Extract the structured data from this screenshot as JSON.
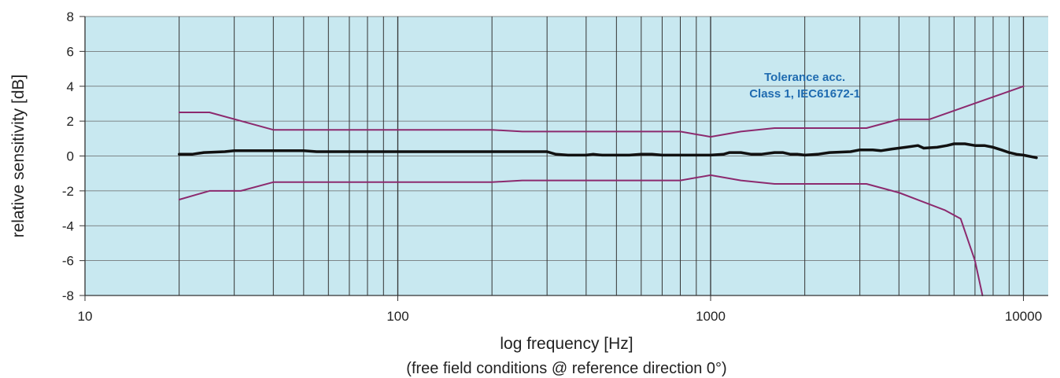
{
  "chart_data": {
    "type": "line",
    "xlabel": "log frequency [Hz]",
    "subtitle": "(free field conditions @ reference direction 0°)",
    "ylabel": "relative sensitivity [dB]",
    "xscale": "log",
    "xlim": [
      10,
      12000
    ],
    "ylim": [
      -8,
      8
    ],
    "x_ticks": [
      10,
      100,
      1000,
      10000
    ],
    "x_tick_labels": [
      "10",
      "100",
      "1000",
      "10000"
    ],
    "y_ticks": [
      -8,
      -6,
      -4,
      -2,
      0,
      2,
      4,
      6,
      8
    ],
    "y_tick_labels": [
      "-8",
      "-6",
      "-4",
      "-2",
      "0",
      "2",
      "4",
      "6",
      "8"
    ],
    "grid_vertical": [
      20,
      30,
      40,
      50,
      60,
      70,
      80,
      90,
      200,
      300,
      400,
      500,
      600,
      700,
      800,
      900,
      2000,
      3000,
      4000,
      5000,
      6000,
      7000,
      8000,
      9000
    ],
    "plot_background": "#c8e8f0",
    "annotation": {
      "lines": [
        "Tolerance acc.",
        "Class 1, IEC61672-1"
      ],
      "x": 2000,
      "y": 4.3
    },
    "series": [
      {
        "color": "#111111",
        "width": 3.5,
        "points": [
          [
            20,
            0.1
          ],
          [
            22,
            0.1
          ],
          [
            24,
            0.2
          ],
          [
            28,
            0.25
          ],
          [
            30,
            0.3
          ],
          [
            35,
            0.3
          ],
          [
            40,
            0.3
          ],
          [
            50,
            0.3
          ],
          [
            55,
            0.25
          ],
          [
            70,
            0.25
          ],
          [
            100,
            0.25
          ],
          [
            200,
            0.25
          ],
          [
            300,
            0.25
          ],
          [
            320,
            0.1
          ],
          [
            350,
            0.05
          ],
          [
            400,
            0.05
          ],
          [
            420,
            0.1
          ],
          [
            450,
            0.05
          ],
          [
            500,
            0.05
          ],
          [
            550,
            0.05
          ],
          [
            600,
            0.1
          ],
          [
            650,
            0.1
          ],
          [
            700,
            0.05
          ],
          [
            800,
            0.05
          ],
          [
            900,
            0.05
          ],
          [
            1000,
            0.05
          ],
          [
            1100,
            0.1
          ],
          [
            1150,
            0.2
          ],
          [
            1250,
            0.2
          ],
          [
            1350,
            0.1
          ],
          [
            1450,
            0.1
          ],
          [
            1600,
            0.2
          ],
          [
            1700,
            0.2
          ],
          [
            1800,
            0.1
          ],
          [
            1900,
            0.1
          ],
          [
            2000,
            0.05
          ],
          [
            2200,
            0.1
          ],
          [
            2400,
            0.2
          ],
          [
            2800,
            0.25
          ],
          [
            3000,
            0.35
          ],
          [
            3300,
            0.35
          ],
          [
            3500,
            0.3
          ],
          [
            3800,
            0.4
          ],
          [
            4200,
            0.5
          ],
          [
            4600,
            0.6
          ],
          [
            4800,
            0.45
          ],
          [
            5300,
            0.5
          ],
          [
            5700,
            0.6
          ],
          [
            6000,
            0.7
          ],
          [
            6500,
            0.7
          ],
          [
            7000,
            0.6
          ],
          [
            7500,
            0.6
          ],
          [
            8000,
            0.5
          ],
          [
            8500,
            0.35
          ],
          [
            9000,
            0.2
          ],
          [
            9500,
            0.1
          ],
          [
            10000,
            0.05
          ],
          [
            11000,
            -0.1
          ]
        ]
      },
      {
        "color": "#8c2a6e",
        "width": 2,
        "points": [
          [
            20,
            2.5
          ],
          [
            25,
            2.5
          ],
          [
            40,
            1.5
          ],
          [
            200,
            1.5
          ],
          [
            250,
            1.4
          ],
          [
            800,
            1.4
          ],
          [
            1000,
            1.1
          ],
          [
            1250,
            1.4
          ],
          [
            1600,
            1.6
          ],
          [
            3150,
            1.6
          ],
          [
            4000,
            2.1
          ],
          [
            5000,
            2.1
          ],
          [
            10000,
            4.0
          ]
        ]
      },
      {
        "color": "#8c2a6e",
        "width": 2,
        "points": [
          [
            20,
            -2.5
          ],
          [
            25,
            -2.0
          ],
          [
            31.5,
            -2.0
          ],
          [
            40,
            -1.5
          ],
          [
            200,
            -1.5
          ],
          [
            250,
            -1.4
          ],
          [
            800,
            -1.4
          ],
          [
            1000,
            -1.1
          ],
          [
            1250,
            -1.4
          ],
          [
            1600,
            -1.6
          ],
          [
            3150,
            -1.6
          ],
          [
            4000,
            -2.1
          ],
          [
            5600,
            -3.1
          ],
          [
            6300,
            -3.6
          ],
          [
            7000,
            -6.0
          ],
          [
            7400,
            -8.0
          ]
        ]
      }
    ]
  }
}
